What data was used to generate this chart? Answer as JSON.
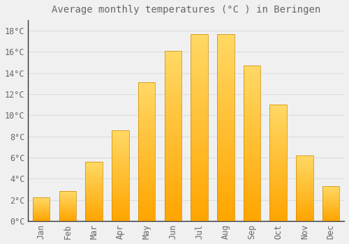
{
  "title": "Average monthly temperatures (°C ) in Beringen",
  "months": [
    "Jan",
    "Feb",
    "Mar",
    "Apr",
    "May",
    "Jun",
    "Jul",
    "Aug",
    "Sep",
    "Oct",
    "Nov",
    "Dec"
  ],
  "temperatures": [
    2.2,
    2.8,
    5.6,
    8.6,
    13.1,
    16.1,
    17.7,
    17.7,
    14.7,
    11.0,
    6.2,
    3.3
  ],
  "bar_color_bottom": "#FFA500",
  "bar_color_top": "#FFD966",
  "bar_edge_color": "#CC8800",
  "background_color": "#F0F0F0",
  "plot_bg_color": "#F0F0F0",
  "grid_color": "#DDDDDD",
  "text_color": "#666666",
  "axis_color": "#333333",
  "ylim": [
    0,
    19
  ],
  "yticks": [
    0,
    2,
    4,
    6,
    8,
    10,
    12,
    14,
    16,
    18
  ],
  "title_fontsize": 10,
  "tick_fontsize": 8.5,
  "bar_width": 0.65
}
